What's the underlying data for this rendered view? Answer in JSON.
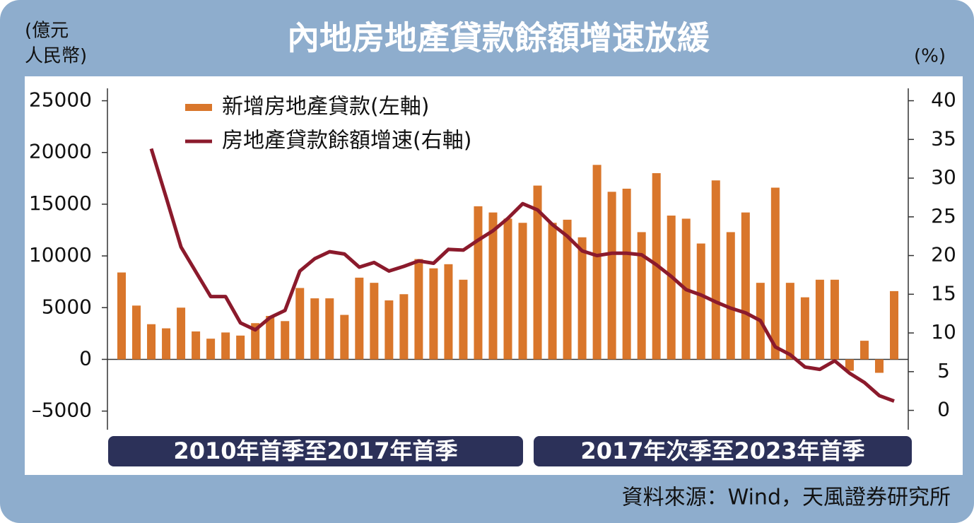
{
  "chart_data": {
    "type": "bar",
    "title": "內地房地產貸款餘額增速放緩",
    "ylabel": [
      "(億元",
      "人民幣)"
    ],
    "y2label": "(%)",
    "categories": [
      null,
      null,
      null,
      null,
      null,
      null,
      null,
      null,
      null,
      null,
      null,
      null,
      null,
      null,
      null,
      null,
      null,
      null,
      null,
      null,
      null,
      null,
      null,
      null,
      null,
      null,
      null,
      null,
      null,
      null,
      null,
      null,
      null,
      null,
      null,
      null,
      null,
      null,
      null,
      null,
      null,
      null,
      null,
      null,
      null,
      null,
      null,
      null,
      null,
      null,
      null,
      null,
      null
    ],
    "series": [
      {
        "name": "新增房地產貸款(左軸)",
        "color": "#d9762b",
        "type": "bar",
        "values": [
          8400,
          5200,
          3400,
          3000,
          5000,
          2700,
          2000,
          2600,
          2300,
          3500,
          4200,
          3700,
          6900,
          5900,
          5900,
          4300,
          7900,
          7400,
          5700,
          6300,
          9700,
          8800,
          9200,
          7700,
          14800,
          14200,
          13600,
          13200,
          16800,
          13200,
          13500,
          11800,
          18800,
          16200,
          16500,
          12300,
          18000,
          13900,
          13600,
          11200,
          17300,
          12300,
          14200,
          7400,
          16600,
          7400,
          6000,
          7700,
          7700,
          -1100,
          1800,
          -1300,
          6600
        ]
      },
      {
        "name": "房地產貸款餘額增速(右軸)",
        "color": "#8b1a2c",
        "type": "line",
        "axis": "y2",
        "values": [
          null,
          null,
          33.8,
          27.5,
          21.1,
          17.9,
          14.7,
          14.7,
          11.3,
          10.4,
          12.0,
          12.9,
          18.0,
          19.6,
          20.5,
          20.2,
          18.5,
          19.1,
          18.0,
          18.6,
          19.3,
          19.0,
          20.8,
          20.7,
          22.0,
          23.2,
          24.8,
          26.7,
          25.9,
          24.0,
          22.5,
          20.6,
          20.0,
          20.3,
          20.3,
          20.1,
          18.8,
          17.3,
          15.6,
          14.9,
          14.0,
          13.2,
          12.6,
          11.6,
          8.2,
          7.2,
          5.6,
          5.3,
          6.4,
          4.8,
          3.6,
          1.9,
          1.2
        ]
      }
    ],
    "ylim": [
      -6800,
      26200
    ],
    "yticks": [
      25000,
      20000,
      15000,
      10000,
      5000,
      0,
      {
        "value": -5000,
        "label": "–5000"
      }
    ],
    "y2lim": [
      -2.5,
      41.6
    ],
    "y2ticks": [
      40,
      35,
      30,
      25,
      20,
      15,
      10,
      5,
      0
    ],
    "grid": false,
    "legend": "top-left",
    "periods": [
      "2010年首季至2017年首季",
      "2017年次季至2023年首季"
    ],
    "source": "資料來源：Wind，天風證券研究所"
  }
}
